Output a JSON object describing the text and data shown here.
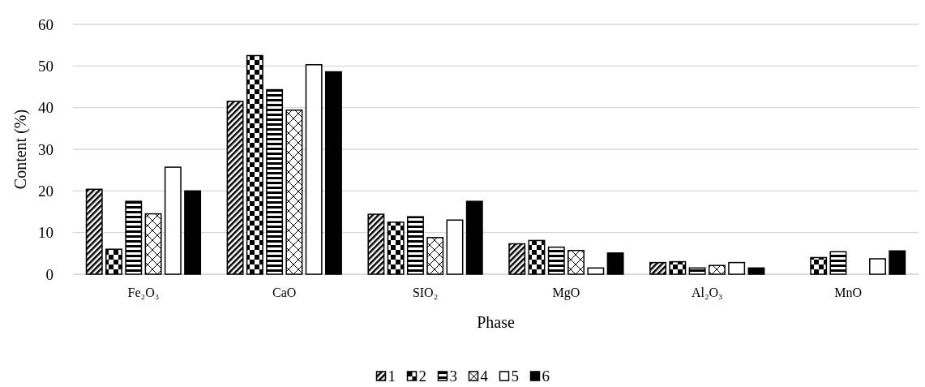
{
  "chart_data": {
    "type": "bar",
    "xlabel": "Phase",
    "ylabel": "Content (%)",
    "categories": [
      "Fe₂O₃",
      "CaO",
      "SIO₂",
      "MgO",
      "Al₂O₃",
      "MnO"
    ],
    "series": [
      {
        "name": "1",
        "color": "#000000",
        "values": [
          20.4,
          41.5,
          14.4,
          7.3,
          2.8,
          null
        ]
      },
      {
        "name": "2",
        "color": "#000000",
        "values": [
          6.0,
          52.5,
          12.5,
          8.1,
          3.0,
          4.0
        ]
      },
      {
        "name": "3",
        "color": "#000000",
        "values": [
          17.5,
          44.3,
          13.8,
          6.5,
          1.5,
          5.4
        ]
      },
      {
        "name": "4",
        "color": "#000000",
        "values": [
          14.5,
          39.4,
          8.8,
          5.7,
          2.1,
          null
        ]
      },
      {
        "name": "5",
        "color": "#ffffff",
        "values": [
          25.7,
          50.3,
          13.0,
          1.5,
          2.8,
          3.7
        ]
      },
      {
        "name": "6",
        "color": "#000000",
        "values": [
          20.0,
          48.6,
          17.5,
          5.1,
          1.5,
          5.6
        ]
      }
    ],
    "ylim": [
      0,
      60
    ],
    "yticks": [
      0,
      10,
      20,
      30,
      40,
      50,
      60
    ],
    "grid": "y",
    "legend": "bottom"
  }
}
